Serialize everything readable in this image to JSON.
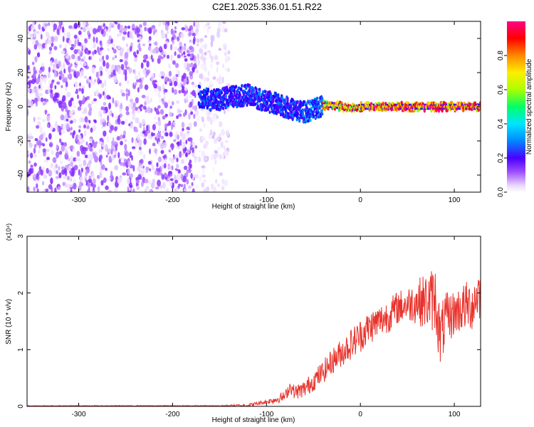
{
  "title": "C2E1.2025.336.01.51.R22",
  "chart_data": [
    {
      "type": "heatmap",
      "xlabel": "Height of straight line (km)",
      "ylabel": "Frequency (Hz)",
      "xlim": [
        -355,
        128
      ],
      "ylim": [
        -50,
        50
      ],
      "xticks": [
        -300,
        -200,
        -100,
        0,
        100
      ],
      "yticks": [
        -40,
        -20,
        0,
        20,
        40
      ],
      "colorbar": {
        "label": "Normalized spectral amplitude",
        "range": [
          0,
          1
        ],
        "ticks": [
          0.0,
          0.2,
          0.4,
          0.6,
          0.8
        ],
        "colormap": [
          "#ffffff",
          "#e8d6ff",
          "#9d4cff",
          "#6a00ff",
          "#1a00ff",
          "#0088ff",
          "#00e5ff",
          "#00ff66",
          "#aaff00",
          "#ffee00",
          "#ff8800",
          "#ff0000",
          "#ff0088"
        ]
      },
      "regions": [
        {
          "x": [
            -355,
            -175
          ],
          "y": [
            -50,
            50
          ],
          "description_level": 0.2
        },
        {
          "x": [
            -175,
            -140
          ],
          "y": [
            -50,
            50
          ],
          "description_level": 0.1
        }
      ],
      "ridge": [
        {
          "x": -172,
          "y": 6
        },
        {
          "x": -160,
          "y": 4
        },
        {
          "x": -150,
          "y": 4
        },
        {
          "x": -140,
          "y": 6
        },
        {
          "x": -130,
          "y": 6
        },
        {
          "x": -120,
          "y": 7
        },
        {
          "x": -110,
          "y": 5
        },
        {
          "x": -100,
          "y": 3
        },
        {
          "x": -90,
          "y": 2
        },
        {
          "x": -80,
          "y": 0
        },
        {
          "x": -70,
          "y": -2
        },
        {
          "x": -60,
          "y": -3
        },
        {
          "x": -50,
          "y": -2
        },
        {
          "x": -40,
          "y": 1
        },
        {
          "x": -30,
          "y": 1
        },
        {
          "x": -20,
          "y": 0
        },
        {
          "x": -10,
          "y": -1
        },
        {
          "x": 0,
          "y": 0
        },
        {
          "x": 50,
          "y": 0
        },
        {
          "x": 100,
          "y": 0
        },
        {
          "x": 128,
          "y": 0
        }
      ],
      "ridge_levels": [
        {
          "x": [
            -172,
            -60
          ],
          "level": 0.35
        },
        {
          "x": [
            -60,
            -40
          ],
          "level": 0.4
        },
        {
          "x": [
            -40,
            0
          ],
          "level": 0.8
        },
        {
          "x": [
            0,
            128
          ],
          "level": 0.9
        }
      ]
    },
    {
      "type": "line",
      "xlabel": "Height of straight line (km)",
      "ylabel": "SNR (10 * v/v)",
      "y_multiplier": "(x10⁴)",
      "xlim": [
        -355,
        128
      ],
      "ylim": [
        0,
        3
      ],
      "xticks": [
        -300,
        -200,
        -100,
        0,
        100
      ],
      "yticks": [
        0,
        1,
        2,
        3
      ],
      "series": [
        {
          "color": "#e8322b",
          "points": [
            [
              -355,
              0.01
            ],
            [
              -300,
              0.01
            ],
            [
              -250,
              0.01
            ],
            [
              -200,
              0.01
            ],
            [
              -150,
              0.01
            ],
            [
              -120,
              0.02
            ],
            [
              -110,
              0.05
            ],
            [
              -100,
              0.08
            ],
            [
              -90,
              0.12
            ],
            [
              -80,
              0.18
            ],
            [
              -75,
              0.35
            ],
            [
              -70,
              0.25
            ],
            [
              -60,
              0.3
            ],
            [
              -50,
              0.45
            ],
            [
              -40,
              0.6
            ],
            [
              -30,
              0.8
            ],
            [
              -20,
              0.95
            ],
            [
              -10,
              1.1
            ],
            [
              0,
              1.25
            ],
            [
              10,
              1.4
            ],
            [
              20,
              1.5
            ],
            [
              30,
              1.6
            ],
            [
              40,
              1.75
            ],
            [
              50,
              1.8
            ],
            [
              60,
              1.85
            ],
            [
              70,
              1.85
            ],
            [
              80,
              1.9
            ],
            [
              85,
              1.2
            ],
            [
              90,
              1.5
            ],
            [
              100,
              1.65
            ],
            [
              110,
              1.75
            ],
            [
              120,
              1.8
            ],
            [
              125,
              2.0
            ]
          ],
          "noise_amplitude": [
            [
              -355,
              0.005
            ],
            [
              -150,
              0.008
            ],
            [
              -100,
              0.04
            ],
            [
              -50,
              0.18
            ],
            [
              0,
              0.3
            ],
            [
              50,
              0.3
            ],
            [
              80,
              0.6
            ],
            [
              90,
              0.5
            ],
            [
              100,
              0.4
            ],
            [
              128,
              0.5
            ]
          ]
        }
      ]
    }
  ]
}
